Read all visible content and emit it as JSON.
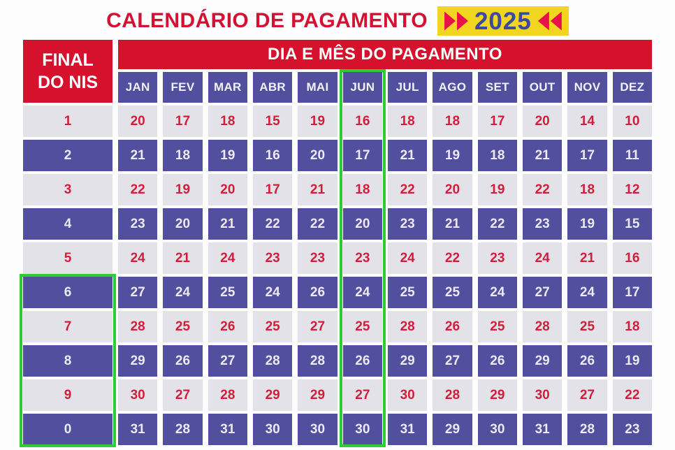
{
  "title": "CALENDÁRIO DE PAGAMENTO",
  "year_badge": {
    "year": "2025"
  },
  "colors": {
    "red": "#d5112e",
    "dark_blue_cell": "#514f9e",
    "light_cell": "#e4e2e9",
    "day_number_red": "#d21e3a",
    "highlight_green": "#2ecc33",
    "badge_yellow": "#f2d51f",
    "year_navy": "#3c4b9c"
  },
  "chart_data": {
    "type": "table",
    "title": "CALENDÁRIO DE PAGAMENTO 2025",
    "row_header": "FINAL DO NIS",
    "column_group_header": "DIA E MÊS DO PAGAMENTO",
    "columns": [
      "JAN",
      "FEV",
      "MAR",
      "ABR",
      "MAI",
      "JUN",
      "JUL",
      "AGO",
      "SET",
      "OUT",
      "NOV",
      "DEZ"
    ],
    "rows": [
      {
        "nis": "1",
        "days": [
          20,
          17,
          18,
          15,
          19,
          16,
          18,
          18,
          17,
          20,
          14,
          10
        ]
      },
      {
        "nis": "2",
        "days": [
          21,
          18,
          19,
          16,
          20,
          17,
          21,
          19,
          18,
          21,
          17,
          11
        ]
      },
      {
        "nis": "3",
        "days": [
          22,
          19,
          20,
          17,
          21,
          18,
          22,
          20,
          19,
          22,
          18,
          12
        ]
      },
      {
        "nis": "4",
        "days": [
          23,
          20,
          21,
          22,
          22,
          20,
          23,
          21,
          22,
          23,
          19,
          15
        ]
      },
      {
        "nis": "5",
        "days": [
          24,
          21,
          24,
          23,
          23,
          23,
          24,
          22,
          23,
          24,
          21,
          16
        ]
      },
      {
        "nis": "6",
        "days": [
          27,
          24,
          25,
          24,
          26,
          24,
          25,
          25,
          24,
          27,
          24,
          17
        ]
      },
      {
        "nis": "7",
        "days": [
          28,
          25,
          26,
          25,
          27,
          25,
          28,
          26,
          25,
          28,
          25,
          18
        ]
      },
      {
        "nis": "8",
        "days": [
          29,
          26,
          27,
          28,
          28,
          26,
          29,
          27,
          26,
          29,
          26,
          19
        ]
      },
      {
        "nis": "9",
        "days": [
          30,
          27,
          28,
          29,
          29,
          27,
          30,
          28,
          29,
          30,
          27,
          22
        ]
      },
      {
        "nis": "0",
        "days": [
          31,
          28,
          31,
          30,
          30,
          30,
          31,
          29,
          30,
          31,
          28,
          23
        ]
      }
    ],
    "layout_hints": {
      "row_style_alternating": [
        "light",
        "dark"
      ],
      "highlighted_column": "JUN",
      "highlighted_nis_rows": [
        "6",
        "7",
        "8",
        "9",
        "0"
      ]
    }
  }
}
